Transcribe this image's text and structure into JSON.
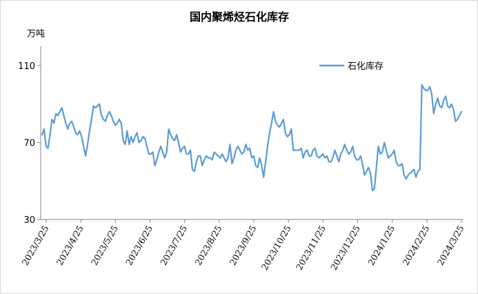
{
  "chart_data": {
    "type": "line",
    "title": "国内聚烯烃石化库存",
    "unit_label": "万吨",
    "ylim": [
      30,
      120
    ],
    "yticks": [
      30,
      70,
      110
    ],
    "grid": false,
    "legend_position": "top-right",
    "x_tick_labels": [
      "2023/3/25",
      "2023/4/25",
      "2023/5/25",
      "2023/6/25",
      "2023/7/25",
      "2023/8/25",
      "2023/9/25",
      "2023/10/25",
      "2023/11/25",
      "2023/12/25",
      "2024/1/25",
      "2024/2/25",
      "2024/3/25"
    ],
    "colors": {
      "series": "#5b9bd5",
      "axis": "#868686"
    },
    "series": [
      {
        "name": "石化库存",
        "values": [
          74,
          77,
          68,
          67,
          74,
          82,
          80,
          85,
          84,
          86,
          88,
          84,
          80,
          77,
          80,
          81,
          78,
          75,
          74,
          76,
          73,
          68,
          63,
          69,
          76,
          82,
          89,
          88,
          89,
          90,
          84,
          82,
          81,
          84,
          86,
          84,
          81,
          79,
          80,
          82,
          80,
          71,
          69,
          76,
          69,
          73,
          70,
          73,
          75,
          70,
          71,
          73,
          72,
          68,
          64,
          64,
          65,
          58,
          61,
          65,
          68,
          65,
          62,
          65,
          77,
          74,
          72,
          71,
          74,
          70,
          65,
          67,
          68,
          64,
          64,
          66,
          56,
          55,
          60,
          63,
          63,
          58,
          61,
          63,
          62,
          62,
          61,
          65,
          64,
          63,
          62,
          64,
          62,
          60,
          62,
          69,
          59,
          62,
          66,
          68,
          66,
          64,
          65,
          69,
          66,
          67,
          62,
          63,
          58,
          57,
          62,
          58,
          52,
          60,
          68,
          75,
          80,
          86,
          81,
          79,
          78,
          80,
          82,
          75,
          73,
          74,
          77,
          66,
          66,
          66,
          66,
          67,
          62,
          65,
          66,
          63,
          63,
          66,
          67,
          63,
          62,
          63,
          64,
          62,
          63,
          60,
          60,
          62,
          66,
          63,
          60,
          64,
          66,
          69,
          66,
          64,
          65,
          68,
          63,
          61,
          61,
          63,
          59,
          53,
          55,
          57,
          54,
          45,
          46,
          57,
          68,
          64,
          65,
          70,
          66,
          62,
          63,
          64,
          66,
          60,
          58,
          58,
          59,
          53,
          51,
          53,
          54,
          55,
          56,
          52,
          55,
          56,
          100,
          98,
          97,
          97,
          99,
          95,
          85,
          90,
          93,
          89,
          88,
          92,
          94,
          89,
          88,
          90,
          87,
          81,
          82,
          84,
          86
        ]
      }
    ]
  }
}
